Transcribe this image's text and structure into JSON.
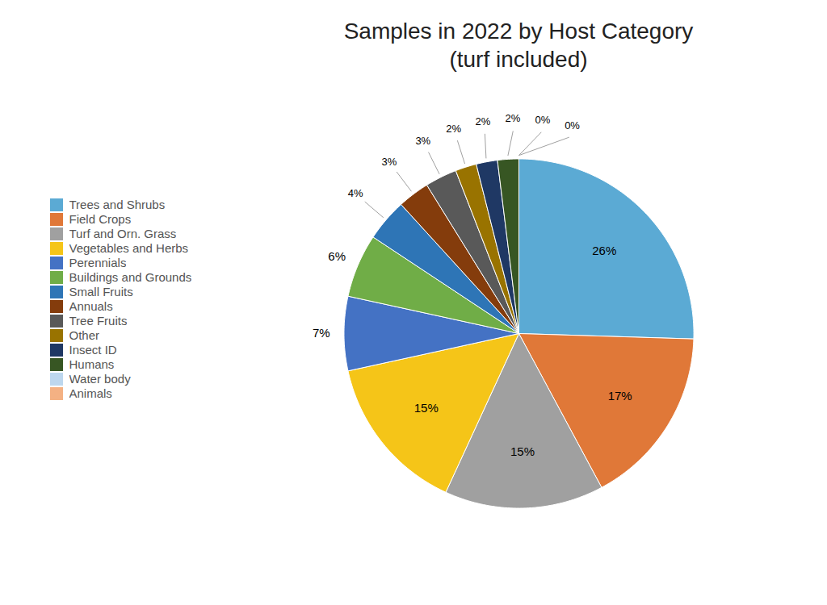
{
  "chart_data": {
    "type": "pie",
    "title": "Samples in 2022 by Host Category\n(turf included)",
    "categories": [
      "Trees and Shrubs",
      "Field Crops",
      "Turf and Orn. Grass",
      "Vegetables and Herbs",
      "Perennials",
      "Buildings and Grounds",
      "Small Fruits",
      "Annuals",
      "Tree Fruits",
      "Other",
      "Insect ID",
      "Humans",
      "Water body",
      "Animals"
    ],
    "values": [
      26,
      17,
      15,
      15,
      7,
      6,
      4,
      3,
      3,
      2,
      2,
      2,
      0,
      0
    ],
    "value_labels": [
      "26%",
      "17%",
      "15%",
      "15%",
      "7%",
      "6%",
      "4%",
      "3%",
      "3%",
      "2%",
      "2%",
      "2%",
      "0%",
      "0%"
    ],
    "colors": [
      "#5BAAD4",
      "#E07838",
      "#A0A0A0",
      "#F5C518",
      "#4472C4",
      "#70AD47",
      "#2E75B6",
      "#843C0C",
      "#595959",
      "#997300",
      "#1F3864",
      "#375623",
      "#BDD7EE",
      "#F4B183"
    ],
    "data_labels": true,
    "legend": "left"
  }
}
